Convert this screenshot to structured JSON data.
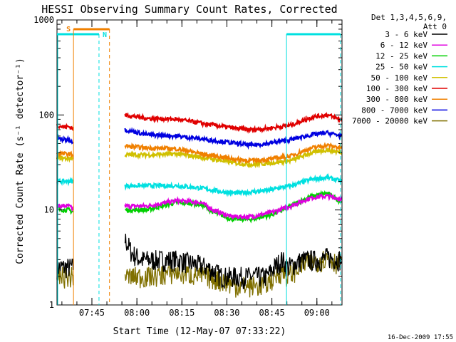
{
  "chart_data": {
    "type": "line",
    "title": "HESSI Observing Summary Count Rates, Corrected",
    "xlabel": "Start Time (12-May-07 07:33:22)",
    "ylabel": "Corrected Count Rate (s⁻¹ detector⁻¹)",
    "y_scale": "log",
    "ylim": [
      1,
      1000
    ],
    "xlim_minutes": [
      0,
      95
    ],
    "x_ticks": [
      {
        "t": 11.6333,
        "label": "07:45"
      },
      {
        "t": 26.6333,
        "label": "08:00"
      },
      {
        "t": 41.6333,
        "label": "08:15"
      },
      {
        "t": 56.6333,
        "label": "08:30"
      },
      {
        "t": 71.6333,
        "label": "08:45"
      },
      {
        "t": 86.6333,
        "label": "09:00"
      }
    ],
    "y_ticks": [
      {
        "v": 1,
        "label": "1"
      },
      {
        "v": 10,
        "label": "10"
      },
      {
        "v": 100,
        "label": "100"
      },
      {
        "v": 1000,
        "label": "1000"
      }
    ],
    "legend_header": [
      "Det 1,3,4,5,6,9,",
      "Att 0"
    ],
    "legend_position": "outside right",
    "timestamp": "16-Dec-2009 17:55",
    "data_gaps": [
      [
        5.5,
        22.5
      ]
    ],
    "series": [
      {
        "name": "3 - 6 keV",
        "color": "#000000",
        "x": [
          0,
          4,
          5.5,
          22.5,
          25,
          28,
          32,
          40,
          50,
          55,
          60,
          67,
          70,
          75,
          77,
          82,
          88,
          90,
          95
        ],
        "y": [
          2.5,
          2.5,
          2.5,
          5,
          3.5,
          3,
          3,
          3,
          2.5,
          2,
          2,
          2,
          2,
          3,
          2.5,
          3,
          3,
          3.2,
          3
        ]
      },
      {
        "name": "6 - 12 keV",
        "color": "#e000e0",
        "x": [
          0,
          2,
          4,
          5.5,
          22.5,
          30,
          40,
          48,
          52,
          58,
          65,
          72,
          78,
          85,
          90,
          95
        ],
        "y": [
          11,
          11,
          11,
          10,
          11,
          11,
          12.5,
          12,
          10,
          8.5,
          8.5,
          9.5,
          11,
          13.5,
          14,
          13
        ]
      },
      {
        "name": "12 - 25 keV",
        "color": "#00d000",
        "x": [
          0,
          2,
          4,
          5.5,
          22.5,
          30,
          40,
          48,
          52,
          58,
          65,
          72,
          78,
          85,
          90,
          95
        ],
        "y": [
          10.5,
          10,
          10,
          9.5,
          10,
          10,
          12,
          11.5,
          9.5,
          8,
          8,
          9,
          11,
          14,
          15,
          12
        ]
      },
      {
        "name": "25 - 50 keV",
        "color": "#00e0e0",
        "x": [
          0,
          2,
          4,
          5.5,
          22.5,
          30,
          40,
          48,
          55,
          60,
          65,
          70,
          78,
          85,
          90,
          95
        ],
        "y": [
          20,
          20,
          20,
          20,
          18,
          18,
          18,
          17,
          15.5,
          15,
          15.5,
          16,
          18,
          21,
          22,
          20
        ]
      },
      {
        "name": "50 - 100 keV",
        "color": "#d0c000",
        "x": [
          0,
          2,
          4,
          5.5,
          22.5,
          30,
          40,
          50,
          60,
          65,
          70,
          78,
          85,
          90,
          95
        ],
        "y": [
          36,
          35,
          35,
          35,
          38,
          38,
          39,
          35,
          31,
          30,
          31,
          33,
          40,
          43,
          40
        ]
      },
      {
        "name": "100 - 300 keV",
        "color": "#e00000",
        "x": [
          0,
          2,
          4,
          5.5,
          22.5,
          30,
          40,
          50,
          60,
          65,
          70,
          78,
          85,
          90,
          95
        ],
        "y": [
          78,
          75,
          75,
          72,
          100,
          92,
          90,
          80,
          72,
          70,
          72,
          78,
          95,
          100,
          88
        ]
      },
      {
        "name": "300 - 800 keV",
        "color": "#f08000",
        "x": [
          0,
          2,
          4,
          5.5,
          22.5,
          30,
          40,
          50,
          60,
          65,
          70,
          78,
          85,
          90,
          95
        ],
        "y": [
          40,
          39,
          39,
          38,
          47,
          45,
          44,
          38,
          34,
          33,
          34,
          37,
          45,
          48,
          45
        ]
      },
      {
        "name": "800 - 7000 keV",
        "color": "#0000e0",
        "x": [
          0,
          2,
          4,
          5.5,
          22.5,
          30,
          40,
          50,
          60,
          65,
          70,
          78,
          85,
          90,
          95
        ],
        "y": [
          57,
          55,
          55,
          52,
          70,
          62,
          60,
          55,
          50,
          48,
          50,
          55,
          62,
          65,
          60
        ]
      },
      {
        "name": "7000 - 20000 keV",
        "color": "#807000",
        "x": [
          0,
          4,
          5.5,
          22.5,
          25,
          30,
          40,
          50,
          55,
          60,
          67,
          70,
          75,
          77,
          82,
          88,
          90,
          95
        ],
        "y": [
          2,
          2,
          2,
          2,
          2,
          2,
          2.2,
          2,
          1.8,
          1.6,
          1.6,
          1.7,
          2.3,
          2,
          2.7,
          3,
          3.2,
          2.6
        ]
      }
    ],
    "annotations": [
      {
        "label": "S",
        "color": "#f08000",
        "t_range": [
          5.5,
          17.5
        ]
      },
      {
        "label": "N",
        "color": "#00e0e0",
        "t_range": [
          14,
          17.5
        ]
      }
    ]
  }
}
